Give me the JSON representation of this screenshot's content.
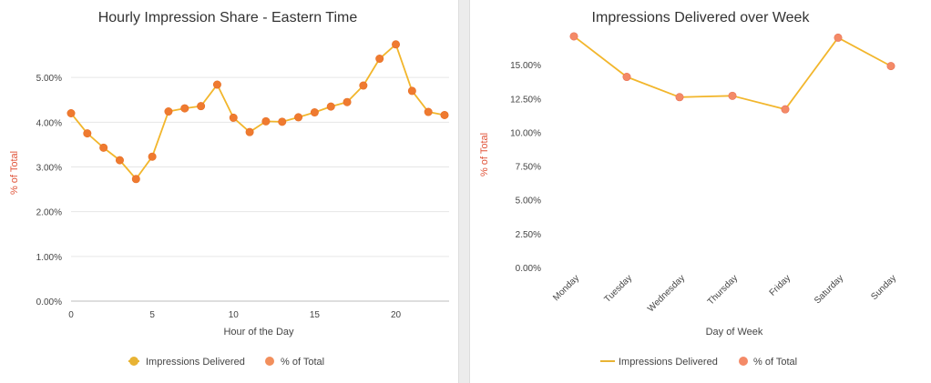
{
  "chart_data": [
    {
      "type": "line",
      "title": "Hourly Impression Share - Eastern Time",
      "xlabel": "Hour of the Day",
      "ylabel": "% of Total",
      "x": [
        0,
        1,
        2,
        3,
        4,
        5,
        6,
        7,
        8,
        9,
        10,
        11,
        12,
        13,
        14,
        15,
        16,
        17,
        18,
        19,
        20,
        21,
        22,
        23
      ],
      "x_ticks": [
        0,
        5,
        10,
        15,
        20
      ],
      "x_tick_labels": [
        "0",
        "5",
        "10",
        "15",
        "20"
      ],
      "xlim": [
        0,
        23
      ],
      "ylim": [
        0,
        6
      ],
      "y_ticks": [
        0,
        1,
        2,
        3,
        4,
        5
      ],
      "y_tick_labels": [
        "0.00%",
        "1.00%",
        "2.00%",
        "3.00%",
        "4.00%",
        "5.00%"
      ],
      "grid": true,
      "series": [
        {
          "name": "% of Total",
          "values": [
            4.2,
            3.75,
            3.43,
            3.15,
            2.73,
            3.23,
            4.24,
            4.31,
            4.36,
            4.84,
            4.1,
            3.78,
            4.02,
            4.01,
            4.11,
            4.22,
            4.35,
            4.45,
            4.82,
            5.42,
            5.74,
            4.7,
            4.23,
            4.16
          ]
        }
      ],
      "legend": {
        "position": "bottom",
        "entries": [
          {
            "label": "Impressions Delivered",
            "marker": "dot-line",
            "color": "#e8b334"
          },
          {
            "label": "% of Total",
            "marker": "dot",
            "color": "#f07b3f"
          }
        ]
      },
      "colors": {
        "line": "#f2b62c",
        "point": "#ef7a30",
        "point_stroke": "#e76f24",
        "grid": "#e6e6e6"
      }
    },
    {
      "type": "line",
      "title": "Impressions Delivered over Week",
      "xlabel": "Day of Week",
      "ylabel": "% of Total",
      "categories": [
        "Monday",
        "Tuesday",
        "Wednesday",
        "Thursday",
        "Friday",
        "Saturday",
        "Sunday"
      ],
      "ylim": [
        0,
        17.5
      ],
      "y_ticks": [
        0,
        2.5,
        5,
        7.5,
        10,
        12.5,
        15
      ],
      "y_tick_labels": [
        "0.00%",
        "2.50%",
        "5.00%",
        "7.50%",
        "10.00%",
        "12.50%",
        "15.00%"
      ],
      "grid": false,
      "series": [
        {
          "name": "% of Total",
          "values": [
            17.1,
            14.1,
            12.6,
            12.7,
            11.7,
            17.0,
            14.9
          ]
        }
      ],
      "legend": {
        "position": "bottom",
        "entries": [
          {
            "label": "Impressions Delivered",
            "marker": "line",
            "color": "#e8b334"
          },
          {
            "label": "% of Total",
            "marker": "dot",
            "color": "#f48a67"
          }
        ]
      },
      "colors": {
        "line": "#f2b62c",
        "point": "#f48a67",
        "point_stroke": "#e86f54",
        "grid": "#e6e6e6"
      }
    }
  ]
}
